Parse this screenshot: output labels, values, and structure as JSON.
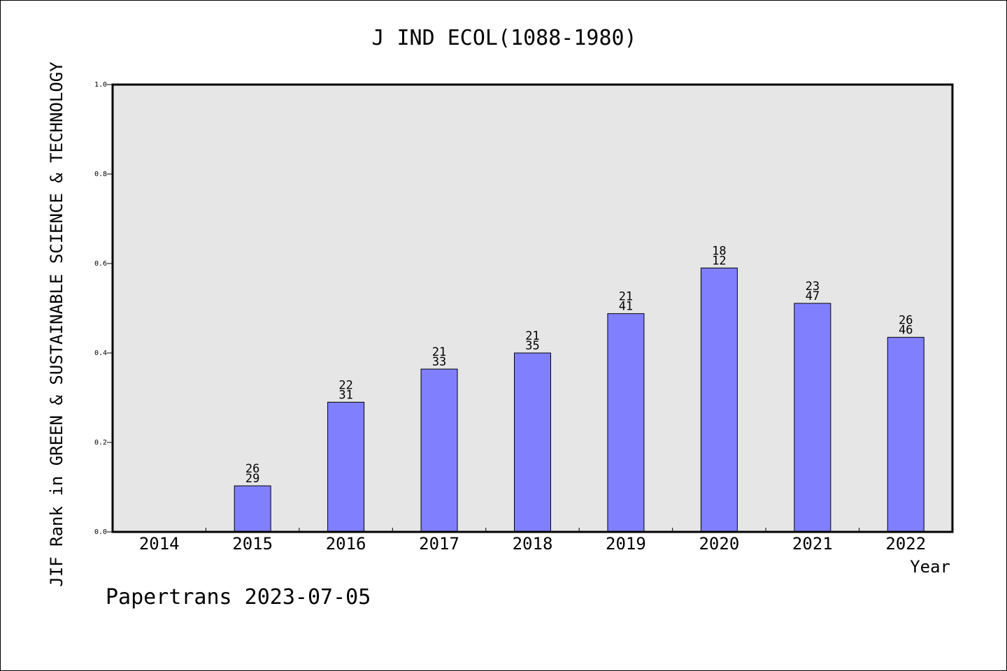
{
  "chart_data": {
    "type": "bar",
    "title": "J IND ECOL(1088-1980)",
    "xlabel": "Year",
    "ylabel": "JIF Rank in GREEN & SUSTAINABLE SCIENCE & TECHNOLOGY",
    "categories": [
      "2014",
      "2015",
      "2016",
      "2017",
      "2018",
      "2019",
      "2020",
      "2021",
      "2022"
    ],
    "values": [
      null,
      0.103,
      0.29,
      0.364,
      0.4,
      0.488,
      0.59,
      0.511,
      0.435
    ],
    "label_top": [
      "",
      "26",
      "22",
      "21",
      "21",
      "21",
      "18",
      "23",
      "26"
    ],
    "label_bottom": [
      "",
      "29",
      "31",
      "33",
      "35",
      "41",
      "12",
      "47",
      "46"
    ],
    "ylim": [
      0,
      1.0
    ],
    "yticks": [
      "0.0",
      "0.2",
      "0.4",
      "0.6",
      "0.8",
      "1.0"
    ],
    "grid": false,
    "colors": {
      "bar": "#8080ff",
      "plot_bg": "#e6e6e6",
      "axis": "#000000"
    }
  },
  "footer": "Papertrans 2023-07-05"
}
